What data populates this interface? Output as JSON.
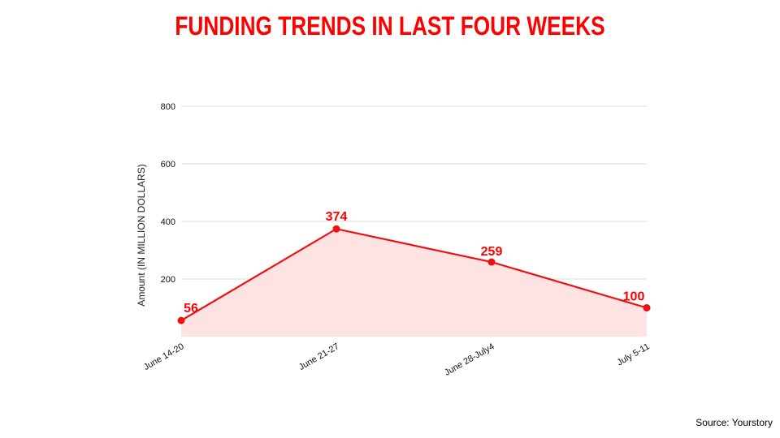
{
  "colors": {
    "accent": "#ff0000",
    "line": "#ee1111",
    "area": "#ffe3e3",
    "grid": "#dddddd"
  },
  "source": "Source: Yourstory",
  "chart_data": {
    "type": "area",
    "title": "FUNDING TRENDS IN LAST FOUR WEEKS",
    "xlabel": "",
    "ylabel": "Amount (IN MILLION DOLLARS)",
    "categories": [
      "June 14-20",
      "June 21-27",
      "June 28-July4",
      "July 5-11"
    ],
    "values": [
      56,
      374,
      259,
      100
    ],
    "data_labels": [
      "56",
      "374",
      "259",
      "100"
    ],
    "ylim": [
      0,
      800
    ],
    "yticks": [
      200,
      400,
      600,
      800
    ],
    "ytick_labels": [
      "200",
      "400",
      "600",
      "800"
    ],
    "grid": true,
    "legend": "none"
  }
}
